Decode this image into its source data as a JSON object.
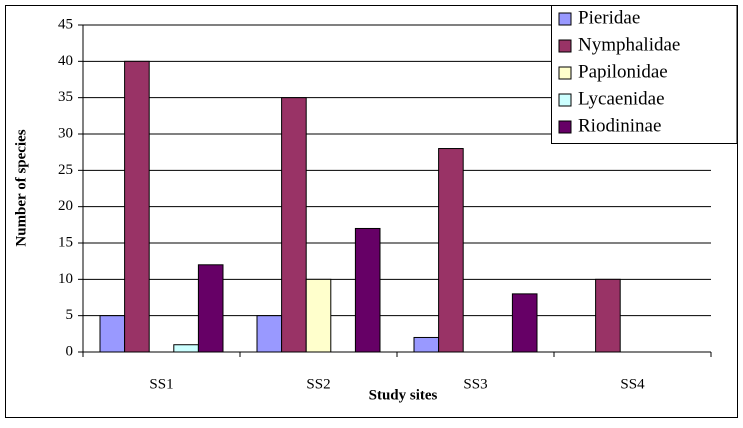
{
  "chart_data": {
    "type": "bar",
    "x_label": "Study sites",
    "y_label": "Number of species",
    "categories": [
      "SS1",
      "SS2",
      "SS3",
      "SS4"
    ],
    "series": [
      {
        "name": "Pieridae",
        "color": "#9999ff",
        "values": [
          5,
          5,
          2,
          0
        ]
      },
      {
        "name": "Nymphalidae",
        "color": "#993366",
        "values": [
          40,
          35,
          28,
          10
        ]
      },
      {
        "name": "Papilonidae",
        "color": "#ffffcc",
        "values": [
          0,
          10,
          0,
          0
        ]
      },
      {
        "name": "Lycaenidae",
        "color": "#ccffff",
        "values": [
          1,
          0,
          0,
          0
        ]
      },
      {
        "name": "Riodininae",
        "color": "#660066",
        "values": [
          12,
          17,
          8,
          0
        ]
      }
    ],
    "ylim": [
      0,
      45
    ],
    "yticks": [
      0,
      5,
      10,
      15,
      20,
      25,
      30,
      35,
      40,
      45
    ],
    "grid": true,
    "legend": "top-right"
  }
}
